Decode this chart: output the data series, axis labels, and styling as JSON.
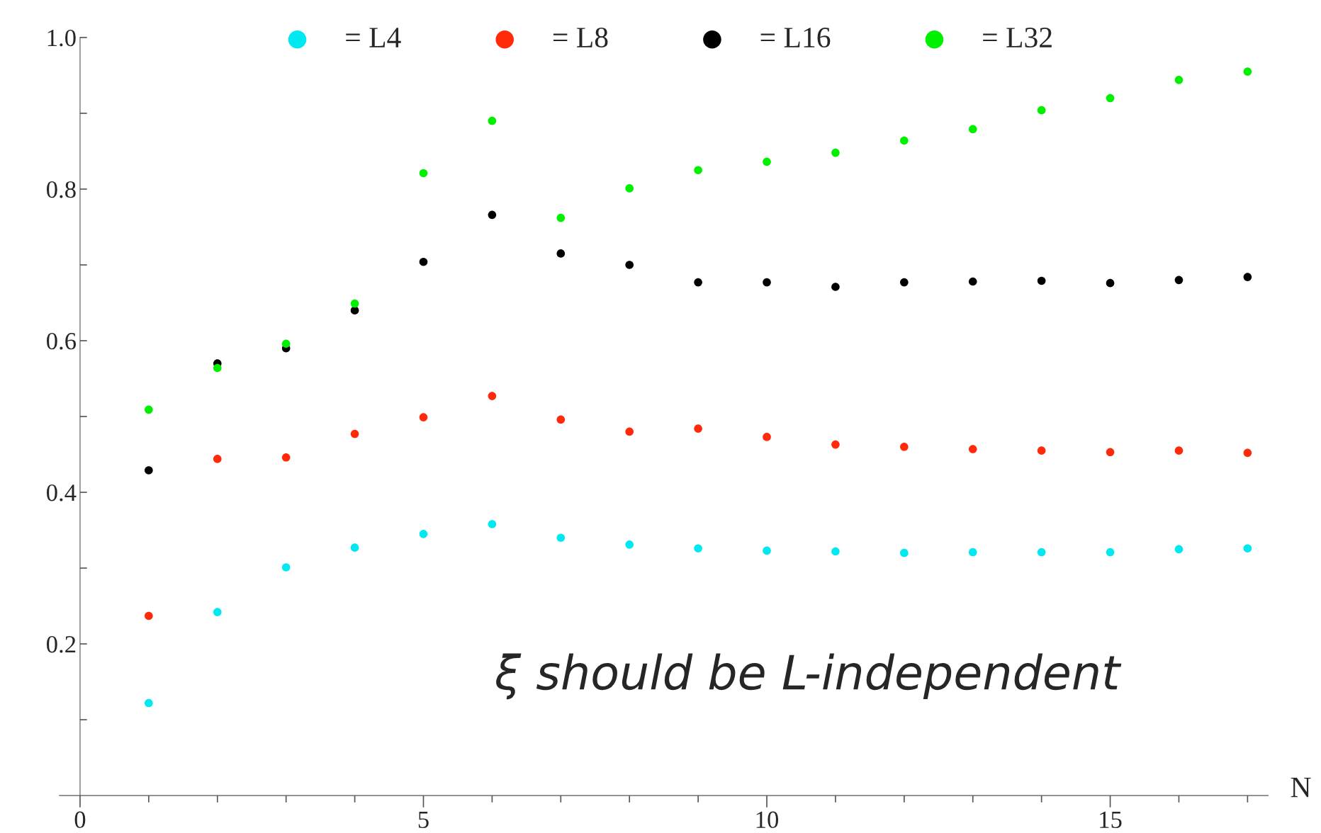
{
  "chart_data": {
    "type": "scatter",
    "xlabel": "N",
    "annotations": [
      "ξ should be L-independent"
    ],
    "x": [
      1,
      2,
      3,
      4,
      5,
      6,
      7,
      8,
      9,
      10,
      11,
      12,
      13,
      14,
      15,
      16,
      17
    ],
    "series": [
      {
        "name": "= L4",
        "color": "#00e8f0",
        "values": [
          0.122,
          0.242,
          0.301,
          0.327,
          0.345,
          0.358,
          0.34,
          0.331,
          0.326,
          0.323,
          0.322,
          0.32,
          0.321,
          0.321,
          0.321,
          0.325,
          0.326
        ]
      },
      {
        "name": "= L8",
        "color": "#ff2a0a",
        "values": [
          0.237,
          0.444,
          0.446,
          0.477,
          0.499,
          0.527,
          0.496,
          0.48,
          0.484,
          0.473,
          0.463,
          0.46,
          0.457,
          0.455,
          0.453,
          0.455,
          0.452
        ]
      },
      {
        "name": "= L16",
        "color": "#000000",
        "values": [
          0.429,
          0.57,
          0.59,
          0.64,
          0.704,
          0.766,
          0.715,
          0.7,
          0.677,
          0.677,
          0.671,
          0.677,
          0.678,
          0.679,
          0.676,
          0.68,
          0.684
        ]
      },
      {
        "name": "= L32",
        "color": "#00f000",
        "values": [
          0.509,
          0.564,
          0.596,
          0.649,
          0.821,
          0.89,
          0.762,
          0.801,
          0.825,
          0.836,
          0.848,
          0.864,
          0.879,
          0.904,
          0.92,
          0.944,
          0.955
        ]
      }
    ],
    "xlim": [
      -0.3,
      17.3
    ],
    "ylim": [
      0,
      1.0
    ],
    "xticks": [
      0,
      {
        "value": 1,
        "label": null
      },
      {
        "value": 2,
        "label": null
      },
      {
        "value": 3,
        "label": null
      },
      {
        "value": 4,
        "label": null
      },
      5,
      {
        "value": 6,
        "label": null
      },
      {
        "value": 7,
        "label": null
      },
      {
        "value": 8,
        "label": null
      },
      {
        "value": 9,
        "label": null
      },
      10,
      {
        "value": 11,
        "label": null
      },
      {
        "value": 12,
        "label": null
      },
      {
        "value": 13,
        "label": null
      },
      {
        "value": 14,
        "label": null
      },
      15,
      {
        "value": 16,
        "label": null
      },
      {
        "value": 17,
        "label": null
      }
    ],
    "yticks": [
      {
        "value": 0.1,
        "label": null
      },
      0.2,
      {
        "value": 0.3,
        "label": null
      },
      0.4,
      {
        "value": 0.5,
        "label": null
      },
      0.6,
      {
        "value": 0.7,
        "label": null
      },
      0.8,
      {
        "value": 0.9,
        "label": null
      },
      {
        "value": 1.0,
        "label": "1.0"
      }
    ],
    "marker": "circle",
    "legend": "top",
    "grid": false
  }
}
